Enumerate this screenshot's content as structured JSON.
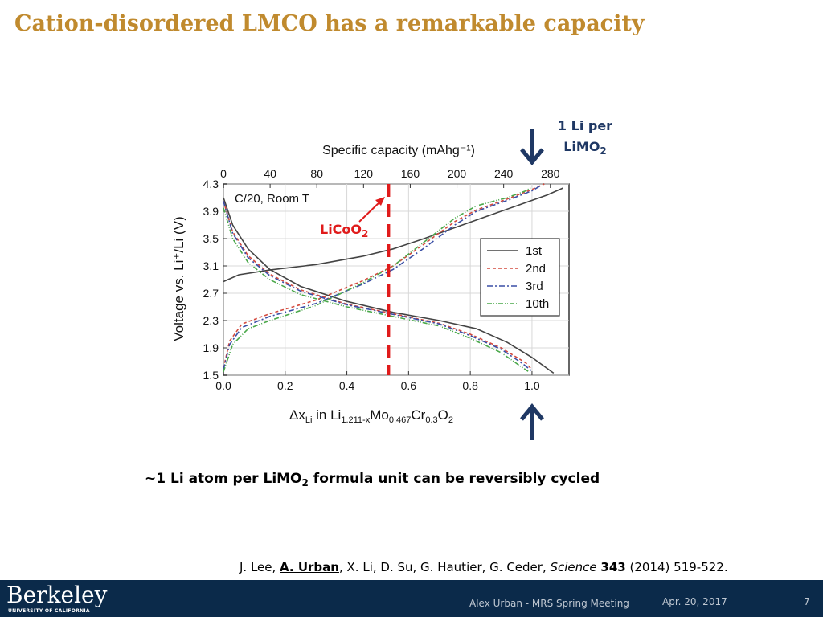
{
  "slide": {
    "title": "Cation-disordered LMCO has a remarkable capacity",
    "annotation_top_line1": "1 Li per",
    "annotation_top_line2": "LiMO",
    "annotation_top_sub": "2",
    "licoo2_label": "LiCoO",
    "licoo2_sub": "2",
    "caption_part1": "~1 Li atom per LiMO",
    "caption_sub": "2",
    "caption_part2": " formula unit can be reversibly cycled",
    "ref_authors_pre": "J. Lee, ",
    "ref_authors_bold": "A. Urban",
    "ref_authors_post": ", X. Li, D. Su, G. Hautier, G. Ceder, ",
    "ref_journal": "Science",
    "ref_volume": "343",
    "ref_pages": " (2014) 519-522."
  },
  "footer": {
    "logo": "Berkeley",
    "logo_sub": "UNIVERSITY OF CALIFORNIA",
    "presenter": "Alex Urban - MRS Spring Meeting",
    "date": "Apr. 20, 2017",
    "page": "7"
  },
  "colors": {
    "title": "#c08a2e",
    "footer_bg": "#0b2a4a",
    "arrow": "#1f3864",
    "marker": "#e01b1b"
  },
  "chart_data": {
    "type": "line",
    "top_axis_title": "Specific capacity (mAhg⁻¹)",
    "xlabel": "Δx",
    "xlabel_sub_li": "Li",
    "xlabel_mid": " in Li",
    "xlabel_sub1": "1.211-x",
    "xlabel_mo": "Mo",
    "xlabel_sub2": "0.467",
    "xlabel_cr": "Cr",
    "xlabel_sub3": "0.3",
    "xlabel_o": "O",
    "xlabel_sub4": "2",
    "ylabel": "Voltage vs. Li⁺/Li (V)",
    "annotation": "C/20, Room T",
    "xlim": [
      0.0,
      1.12
    ],
    "ylim": [
      1.5,
      4.3
    ],
    "top_xlim": [
      0,
      296
    ],
    "xticks": [
      "0.0",
      "0.2",
      "0.4",
      "0.6",
      "0.8",
      "1.0"
    ],
    "yticks": [
      "1.5",
      "1.9",
      "2.3",
      "2.7",
      "3.1",
      "3.5",
      "3.9",
      "4.3"
    ],
    "top_ticks": [
      "0",
      "40",
      "80",
      "120",
      "160",
      "200",
      "240",
      "280"
    ],
    "licoo2_x": 0.535,
    "arrow_x": 1.0,
    "series": [
      {
        "name": "1st",
        "color": "#444444",
        "dash": "",
        "charge": [
          [
            0.0,
            2.87
          ],
          [
            0.05,
            2.97
          ],
          [
            0.15,
            3.04
          ],
          [
            0.3,
            3.12
          ],
          [
            0.45,
            3.24
          ],
          [
            0.55,
            3.35
          ],
          [
            0.65,
            3.5
          ],
          [
            0.75,
            3.66
          ],
          [
            0.85,
            3.82
          ],
          [
            0.95,
            3.98
          ],
          [
            1.05,
            4.14
          ],
          [
            1.1,
            4.24
          ]
        ],
        "discharge": [
          [
            0.0,
            4.1
          ],
          [
            0.03,
            3.7
          ],
          [
            0.08,
            3.35
          ],
          [
            0.15,
            3.05
          ],
          [
            0.25,
            2.8
          ],
          [
            0.4,
            2.58
          ],
          [
            0.55,
            2.42
          ],
          [
            0.7,
            2.3
          ],
          [
            0.82,
            2.18
          ],
          [
            0.92,
            1.98
          ],
          [
            1.0,
            1.76
          ],
          [
            1.07,
            1.53
          ]
        ]
      },
      {
        "name": "2nd",
        "color": "#d44a3e",
        "dash": "4,3",
        "charge": [
          [
            0.0,
            1.6
          ],
          [
            0.02,
            2.0
          ],
          [
            0.06,
            2.25
          ],
          [
            0.15,
            2.4
          ],
          [
            0.3,
            2.6
          ],
          [
            0.45,
            2.88
          ],
          [
            0.55,
            3.1
          ],
          [
            0.65,
            3.42
          ],
          [
            0.75,
            3.75
          ],
          [
            0.82,
            3.92
          ],
          [
            0.92,
            4.08
          ],
          [
            1.0,
            4.22
          ],
          [
            1.04,
            4.3
          ]
        ],
        "discharge": [
          [
            0.0,
            4.05
          ],
          [
            0.03,
            3.6
          ],
          [
            0.08,
            3.25
          ],
          [
            0.15,
            2.98
          ],
          [
            0.25,
            2.75
          ],
          [
            0.4,
            2.54
          ],
          [
            0.55,
            2.4
          ],
          [
            0.7,
            2.26
          ],
          [
            0.8,
            2.1
          ],
          [
            0.9,
            1.9
          ],
          [
            0.98,
            1.68
          ],
          [
            1.0,
            1.58
          ]
        ]
      },
      {
        "name": "3rd",
        "color": "#3a4fa6",
        "dash": "7,3,2,3",
        "charge": [
          [
            0.0,
            1.58
          ],
          [
            0.02,
            1.95
          ],
          [
            0.06,
            2.2
          ],
          [
            0.15,
            2.36
          ],
          [
            0.3,
            2.55
          ],
          [
            0.45,
            2.83
          ],
          [
            0.55,
            3.05
          ],
          [
            0.65,
            3.36
          ],
          [
            0.75,
            3.7
          ],
          [
            0.82,
            3.9
          ],
          [
            0.92,
            4.06
          ],
          [
            1.0,
            4.2
          ],
          [
            1.03,
            4.28
          ]
        ],
        "discharge": [
          [
            0.0,
            4.05
          ],
          [
            0.03,
            3.58
          ],
          [
            0.08,
            3.22
          ],
          [
            0.15,
            2.96
          ],
          [
            0.25,
            2.73
          ],
          [
            0.4,
            2.53
          ],
          [
            0.55,
            2.39
          ],
          [
            0.7,
            2.25
          ],
          [
            0.8,
            2.08
          ],
          [
            0.9,
            1.88
          ],
          [
            0.97,
            1.67
          ],
          [
            1.0,
            1.56
          ]
        ]
      },
      {
        "name": "10th",
        "color": "#4aa84a",
        "dash": "6,2,1,2,1,2",
        "charge": [
          [
            0.0,
            1.55
          ],
          [
            0.03,
            1.95
          ],
          [
            0.08,
            2.18
          ],
          [
            0.15,
            2.3
          ],
          [
            0.3,
            2.52
          ],
          [
            0.45,
            2.85
          ],
          [
            0.55,
            3.1
          ],
          [
            0.65,
            3.45
          ],
          [
            0.75,
            3.8
          ],
          [
            0.82,
            3.98
          ],
          [
            0.92,
            4.1
          ],
          [
            0.98,
            4.2
          ],
          [
            1.0,
            4.26
          ]
        ],
        "discharge": [
          [
            0.0,
            3.95
          ],
          [
            0.03,
            3.5
          ],
          [
            0.08,
            3.15
          ],
          [
            0.15,
            2.9
          ],
          [
            0.25,
            2.68
          ],
          [
            0.4,
            2.5
          ],
          [
            0.55,
            2.36
          ],
          [
            0.7,
            2.22
          ],
          [
            0.8,
            2.04
          ],
          [
            0.9,
            1.83
          ],
          [
            0.96,
            1.64
          ],
          [
            0.99,
            1.55
          ]
        ]
      }
    ]
  }
}
